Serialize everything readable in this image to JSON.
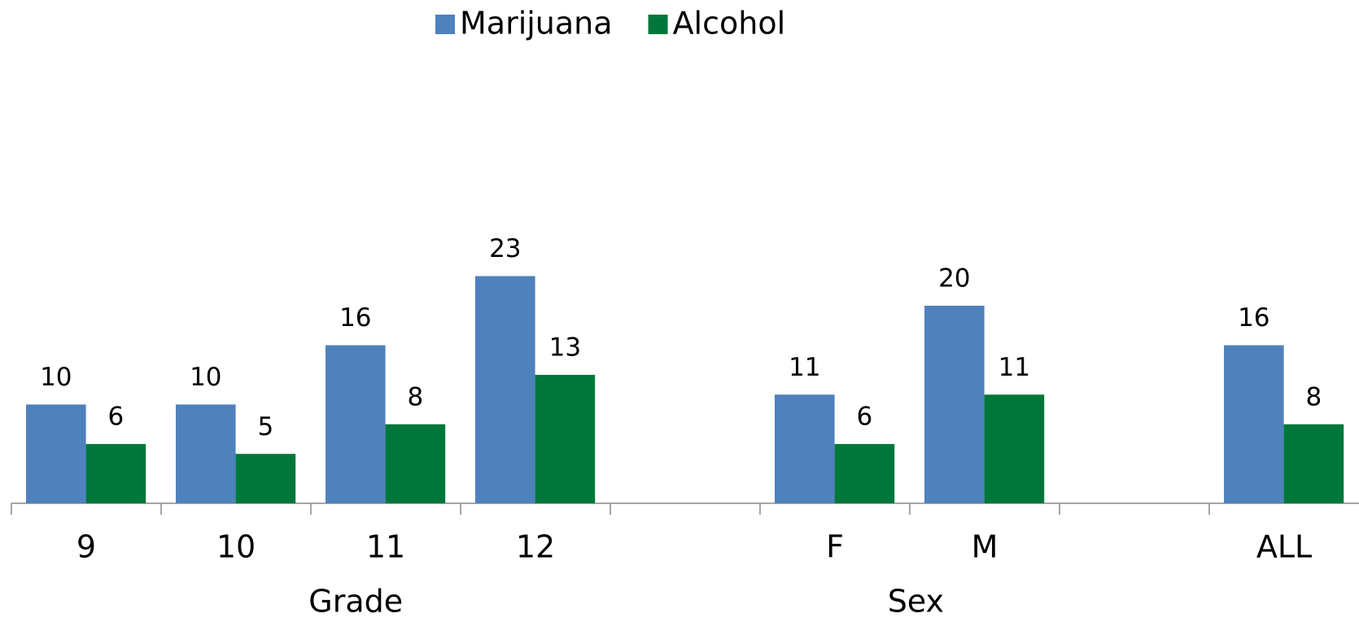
{
  "chart_data": {
    "type": "bar",
    "categories": [
      "9",
      "10",
      "11",
      "12",
      null,
      "F",
      "M",
      null,
      "ALL"
    ],
    "groups": [
      "Grade",
      "Sex"
    ],
    "series": [
      {
        "name": "Marijuana",
        "color": "#4f81bd",
        "values": [
          10,
          10,
          16,
          23,
          null,
          11,
          20,
          null,
          16
        ]
      },
      {
        "name": "Alcohol",
        "color": "#00773a",
        "values": [
          6,
          5,
          8,
          13,
          null,
          6,
          11,
          null,
          8
        ]
      }
    ],
    "ylim": [
      0,
      40
    ],
    "legend": "top"
  }
}
